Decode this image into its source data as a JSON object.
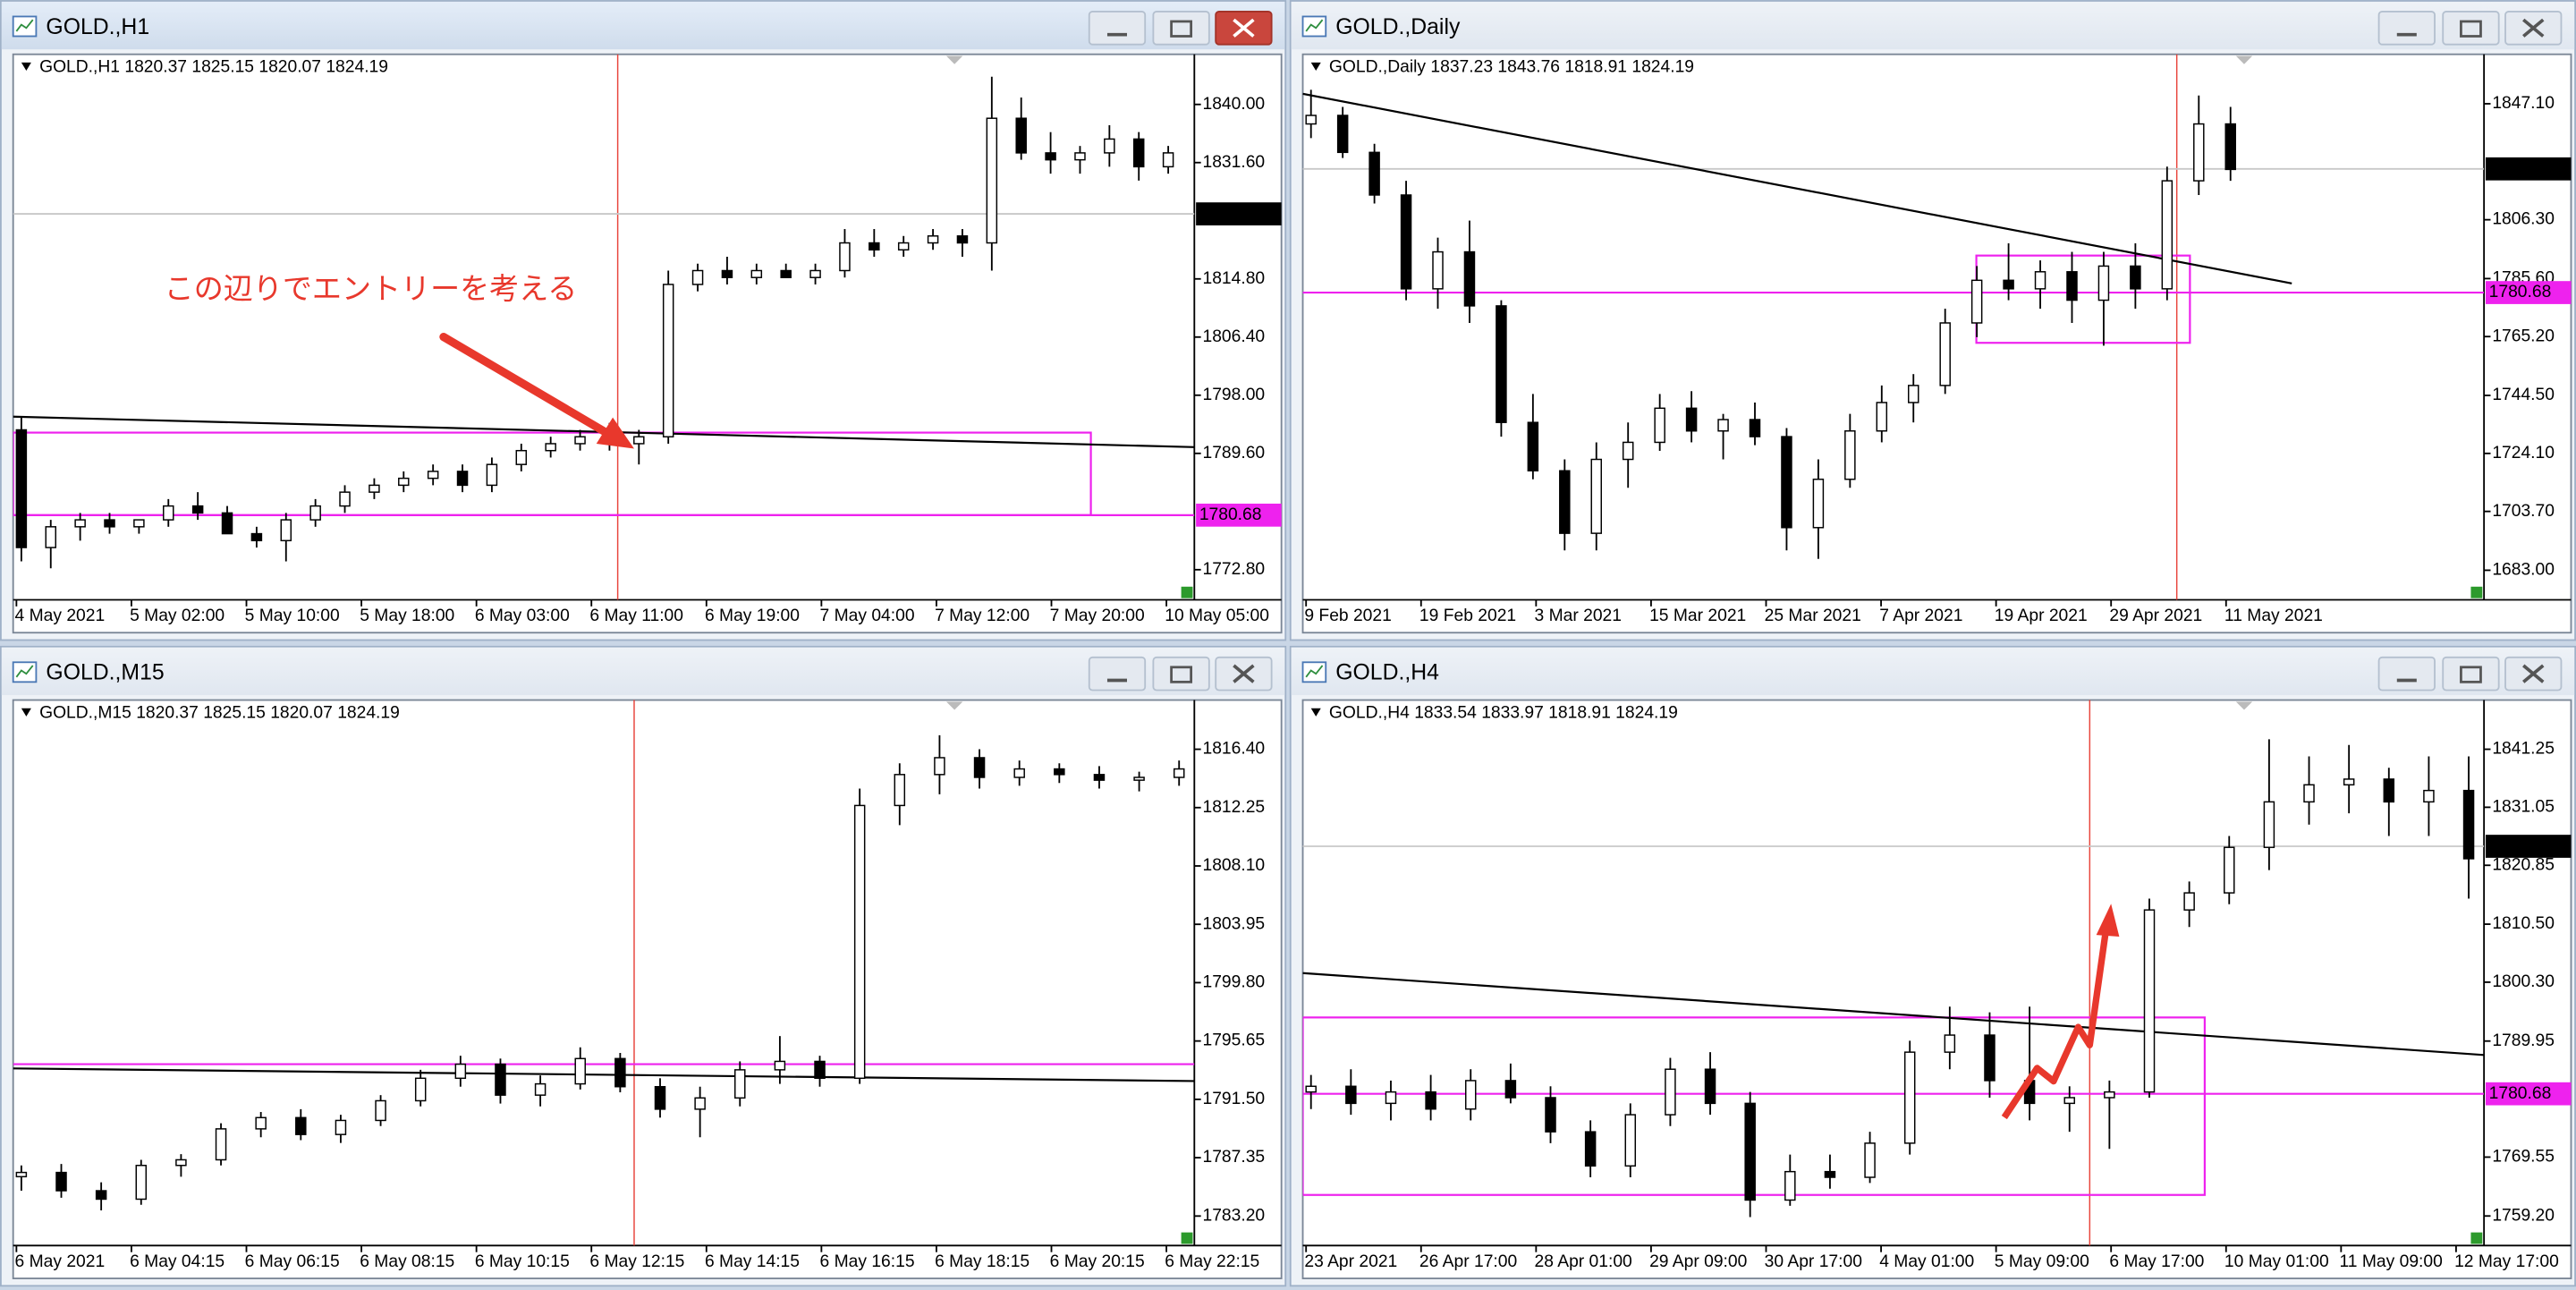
{
  "windows": [
    {
      "title": "GOLD.,H1",
      "info": "GOLD.,H1  1820.37 1825.15 1820.07 1824.19",
      "chart_data": {
        "type": "candlestick",
        "categories": [
          "4 May 2021",
          "5 May 02:00",
          "5 May 10:00",
          "5 May 18:00",
          "6 May 03:00",
          "6 May 11:00",
          "6 May 19:00",
          "7 May 04:00",
          "7 May 12:00",
          "7 May 20:00",
          "10 May 05:00"
        ],
        "open": [
          1793,
          1776,
          1779,
          1780,
          1779,
          1780,
          1782,
          1781,
          1778,
          1777,
          1780,
          1782,
          1784,
          1785,
          1786,
          1787,
          1785,
          1788,
          1790,
          1791,
          1792,
          1791,
          1792,
          1814,
          1816,
          1815,
          1816,
          1815,
          1816,
          1820,
          1819,
          1820,
          1821,
          1820,
          1838,
          1833,
          1832,
          1833,
          1835,
          1831
        ],
        "high": [
          1795,
          1780,
          1781,
          1781,
          1780,
          1783,
          1784,
          1782,
          1779,
          1781,
          1783,
          1785,
          1786,
          1787,
          1788,
          1788,
          1789,
          1791,
          1792,
          1793,
          1794,
          1793,
          1816,
          1817,
          1818,
          1817,
          1817,
          1817,
          1822,
          1822,
          1821,
          1822,
          1822,
          1844,
          1841,
          1836,
          1834,
          1837,
          1836,
          1834
        ],
        "low": [
          1774,
          1773,
          1777,
          1778,
          1778,
          1779,
          1780,
          1778,
          1776,
          1774,
          1779,
          1781,
          1783,
          1784,
          1785,
          1784,
          1784,
          1787,
          1789,
          1790,
          1790,
          1788,
          1791,
          1813,
          1814,
          1814,
          1815,
          1814,
          1815,
          1818,
          1818,
          1819,
          1818,
          1816,
          1832,
          1830,
          1830,
          1831,
          1829,
          1830
        ],
        "close": [
          1776,
          1779,
          1780,
          1779,
          1780,
          1782,
          1781,
          1778,
          1777,
          1780,
          1782,
          1784,
          1785,
          1786,
          1787,
          1785,
          1788,
          1790,
          1791,
          1792,
          1791,
          1792,
          1814,
          1816,
          1815,
          1816,
          1815,
          1816,
          1820,
          1819,
          1820,
          1821,
          1820,
          1838,
          1833,
          1832,
          1833,
          1835,
          1831,
          1833
        ],
        "ylim": [
          1768.45,
          1847.24
        ],
        "yticks": [
          {
            "value": 1840,
            "label": "1840.00"
          },
          {
            "value": 1831.6,
            "label": "1831.60"
          },
          {
            "value": 1814.8,
            "label": "1814.80"
          },
          {
            "value": 1806.4,
            "label": "1806.40"
          },
          {
            "value": 1798,
            "label": "1798.00"
          },
          {
            "value": 1789.6,
            "label": "1789.60"
          },
          {
            "value": 1772.8,
            "label": "1772.80"
          }
        ],
        "bid": 1824.19,
        "level": 1780.68,
        "trendline": [
          1794.9,
          1790.5
        ],
        "box": {
          "top": 1792.6,
          "bottom": 1780.68
        }
      }
    },
    {
      "title": "GOLD.,Daily",
      "info": "GOLD.,Daily  1837.23 1843.76 1818.91 1824.19",
      "chart_data": {
        "type": "candlestick",
        "categories": [
          "9 Feb 2021",
          "19 Feb 2021",
          "3 Mar 2021",
          "15 Mar 2021",
          "25 Mar 2021",
          "7 Apr 2021",
          "19 Apr 2021",
          "29 Apr 2021",
          "11 May 2021"
        ],
        "open": [
          1840,
          1843,
          1830,
          1815,
          1782,
          1795,
          1776,
          1735,
          1718,
          1696,
          1722,
          1728,
          1740,
          1732,
          1736,
          1730,
          1698,
          1715,
          1732,
          1742,
          1748,
          1770,
          1785,
          1782,
          1788,
          1778,
          1790,
          1782,
          1820,
          1840
        ],
        "high": [
          1852,
          1846,
          1833,
          1820,
          1800,
          1806,
          1778,
          1745,
          1722,
          1728,
          1735,
          1745,
          1746,
          1738,
          1742,
          1733,
          1722,
          1738,
          1748,
          1752,
          1775,
          1790,
          1798,
          1792,
          1795,
          1795,
          1798,
          1825,
          1850,
          1846
        ],
        "low": [
          1835,
          1828,
          1812,
          1778,
          1775,
          1770,
          1730,
          1715,
          1690,
          1690,
          1712,
          1725,
          1728,
          1722,
          1727,
          1690,
          1687,
          1712,
          1728,
          1735,
          1745,
          1765,
          1778,
          1775,
          1770,
          1762,
          1775,
          1778,
          1815,
          1820
        ],
        "close": [
          1843,
          1830,
          1815,
          1782,
          1795,
          1776,
          1735,
          1718,
          1696,
          1722,
          1728,
          1740,
          1732,
          1736,
          1730,
          1698,
          1715,
          1732,
          1742,
          1748,
          1770,
          1785,
          1782,
          1788,
          1778,
          1790,
          1782,
          1820,
          1840,
          1824
        ],
        "ylim": [
          1672.6,
          1864.5
        ],
        "yticks": [
          {
            "value": 1847.1,
            "label": "1847.10"
          },
          {
            "value": 1806.3,
            "label": "1806.30"
          },
          {
            "value": 1785.6,
            "label": "1785.60"
          },
          {
            "value": 1765.2,
            "label": "1765.20"
          },
          {
            "value": 1744.5,
            "label": "1744.50"
          },
          {
            "value": 1724.1,
            "label": "1724.10"
          },
          {
            "value": 1703.7,
            "label": "1703.70"
          },
          {
            "value": 1683,
            "label": "1683.00"
          }
        ],
        "bid": 1824.19,
        "level": 1780.68,
        "trendline": [
          1850.6,
          1783.9
        ],
        "box": {
          "top": 1793.7,
          "bottom": 1763
        }
      }
    },
    {
      "title": "GOLD.,M15",
      "info": "GOLD.,M15  1820.37 1825.15 1820.07 1824.19",
      "chart_data": {
        "type": "candlestick",
        "categories": [
          "6 May 2021",
          "6 May 04:15",
          "6 May 06:15",
          "6 May 08:15",
          "6 May 10:15",
          "6 May 12:15",
          "6 May 14:15",
          "6 May 16:15",
          "6 May 18:15",
          "6 May 20:15",
          "6 May 22:15"
        ],
        "open": [
          1786.0,
          1786.3,
          1785.0,
          1784.4,
          1786.8,
          1787.2,
          1789.4,
          1790.2,
          1789.0,
          1790.0,
          1791.4,
          1793.0,
          1794.0,
          1791.8,
          1792.6,
          1794.4,
          1792.4,
          1790.8,
          1791.6,
          1793.6,
          1794.2,
          1793.0,
          1812.4,
          1814.6,
          1815.8,
          1814.4,
          1815.0,
          1814.6,
          1814.2,
          1814.4
        ],
        "high": [
          1786.8,
          1786.9,
          1785.6,
          1787.2,
          1787.6,
          1789.8,
          1790.6,
          1790.8,
          1790.4,
          1791.8,
          1793.6,
          1794.6,
          1794.4,
          1793.2,
          1795.2,
          1794.8,
          1793.0,
          1792.4,
          1794.2,
          1796.0,
          1794.6,
          1813.6,
          1815.4,
          1817.4,
          1816.4,
          1815.6,
          1815.4,
          1815.2,
          1814.8,
          1815.6
        ],
        "low": [
          1785.0,
          1784.5,
          1783.6,
          1784.0,
          1786.0,
          1786.8,
          1788.8,
          1788.6,
          1788.4,
          1789.6,
          1791.0,
          1792.4,
          1791.2,
          1791.0,
          1792.2,
          1792.0,
          1790.2,
          1788.8,
          1791.0,
          1792.6,
          1792.4,
          1792.6,
          1811.0,
          1813.2,
          1813.6,
          1813.8,
          1814.0,
          1813.6,
          1813.4,
          1813.8
        ],
        "close": [
          1786.3,
          1785.0,
          1784.4,
          1786.8,
          1787.2,
          1789.4,
          1790.2,
          1789.0,
          1790.0,
          1791.4,
          1793.0,
          1794.0,
          1791.8,
          1792.6,
          1794.4,
          1792.4,
          1790.8,
          1791.6,
          1793.6,
          1794.2,
          1793.0,
          1812.4,
          1814.6,
          1815.8,
          1814.4,
          1815.0,
          1814.6,
          1814.2,
          1814.4,
          1815.0
        ],
        "ylim": [
          1781.1,
          1819.9
        ],
        "yticks": [
          {
            "value": 1816.4,
            "label": "1816.40"
          },
          {
            "value": 1812.25,
            "label": "1812.25"
          },
          {
            "value": 1808.1,
            "label": "1808.10"
          },
          {
            "value": 1803.95,
            "label": "1803.95"
          },
          {
            "value": 1799.8,
            "label": "1799.80"
          },
          {
            "value": 1795.65,
            "label": "1795.65"
          },
          {
            "value": 1791.5,
            "label": "1791.50"
          },
          {
            "value": 1787.35,
            "label": "1787.35"
          },
          {
            "value": 1783.2,
            "label": "1783.20"
          }
        ],
        "trendline": [
          1793.7,
          1792.8
        ],
        "box": {
          "top": 1794.0
        }
      }
    },
    {
      "title": "GOLD.,H4",
      "info": "GOLD.,H4  1833.54 1833.97 1818.91 1824.19",
      "chart_data": {
        "type": "candlestick",
        "categories": [
          "23 Apr 2021",
          "26 Apr 17:00",
          "28 Apr 01:00",
          "29 Apr 09:00",
          "30 Apr 17:00",
          "4 May 01:00",
          "5 May 09:00",
          "6 May 17:00",
          "10 May 01:00",
          "11 May 09:00",
          "12 May 17:00"
        ],
        "open": [
          1781,
          1782,
          1779,
          1781,
          1778,
          1783,
          1780,
          1774,
          1768,
          1777,
          1785,
          1779,
          1762,
          1767,
          1766,
          1772,
          1788,
          1791,
          1783,
          1779,
          1780,
          1781,
          1813,
          1816,
          1824,
          1832,
          1835,
          1836,
          1832,
          1834
        ],
        "high": [
          1784,
          1785,
          1783,
          1784,
          1785,
          1786,
          1782,
          1776,
          1779,
          1787,
          1788,
          1781,
          1770,
          1770,
          1774,
          1790,
          1796,
          1795,
          1796,
          1782,
          1783,
          1815,
          1818,
          1826,
          1843,
          1840,
          1842,
          1838,
          1840,
          1840
        ],
        "low": [
          1778,
          1777,
          1776,
          1776,
          1776,
          1779,
          1772,
          1766,
          1766,
          1775,
          1777,
          1759,
          1761,
          1764,
          1765,
          1770,
          1785,
          1780,
          1776,
          1774,
          1771,
          1780,
          1810,
          1814,
          1820,
          1828,
          1830,
          1826,
          1826,
          1815
        ],
        "close": [
          1782,
          1779,
          1781,
          1778,
          1783,
          1780,
          1774,
          1768,
          1777,
          1785,
          1779,
          1762,
          1767,
          1766,
          1772,
          1788,
          1791,
          1783,
          1779,
          1780,
          1781,
          1813,
          1816,
          1824,
          1832,
          1835,
          1836,
          1832,
          1834,
          1822
        ],
        "ylim": [
          1754,
          1849.9
        ],
        "yticks": [
          {
            "value": 1841.25,
            "label": "1841.25"
          },
          {
            "value": 1831.05,
            "label": "1831.05"
          },
          {
            "value": 1820.85,
            "label": "1820.85"
          },
          {
            "value": 1810.5,
            "label": "1810.50"
          },
          {
            "value": 1800.3,
            "label": "1800.30"
          },
          {
            "value": 1789.95,
            "label": "1789.95"
          },
          {
            "value": 1769.55,
            "label": "1769.55"
          },
          {
            "value": 1759.2,
            "label": "1759.20"
          }
        ],
        "bid": 1824.19,
        "level": 1780.68,
        "trendline": [
          1801.9,
          1787.5
        ],
        "box": {
          "top": 1794.1,
          "bottom": 1762.9
        }
      }
    }
  ],
  "annotation": "この辺りでエントリーを考える"
}
